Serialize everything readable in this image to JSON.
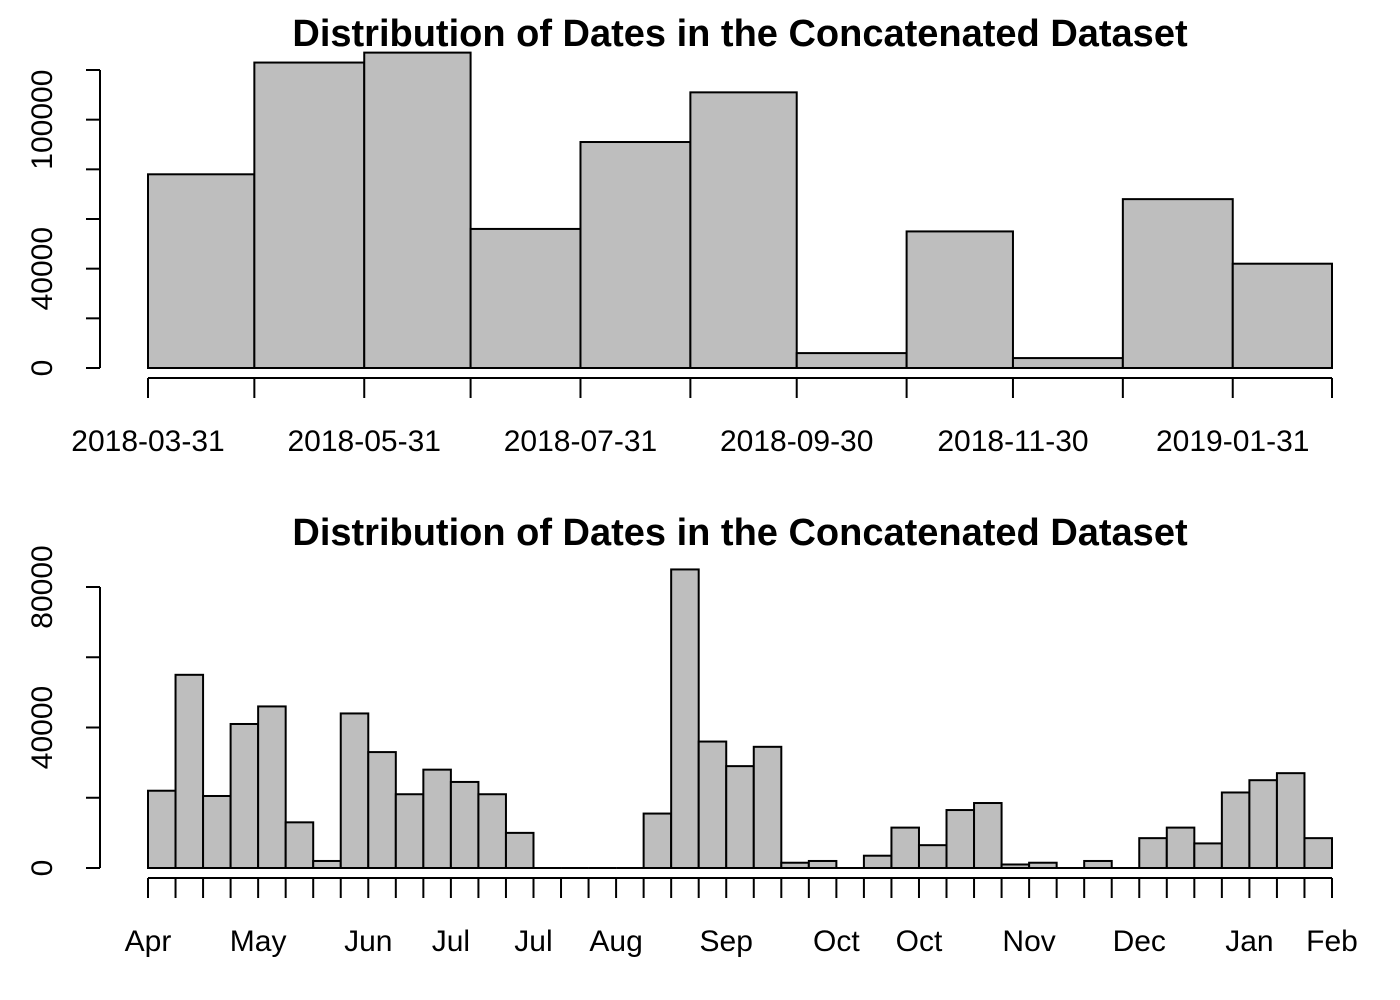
{
  "chart_data": [
    {
      "type": "bar",
      "title": "Distribution of Dates in the Concatenated Dataset",
      "xlabel": "",
      "ylabel": "",
      "ylim": [
        0,
        120000
      ],
      "y_ticks": [
        0,
        20000,
        40000,
        60000,
        80000,
        100000,
        120000
      ],
      "y_tick_labels": [
        "0",
        "40000",
        "100000"
      ],
      "y_tick_labels_at": [
        0,
        40000,
        100000
      ],
      "x_tick_labels": [
        "2018-03-31",
        "2018-05-31",
        "2018-07-31",
        "2018-09-30",
        "2018-11-30",
        "2019-01-31"
      ],
      "bins": [
        {
          "start": "2018-03-31",
          "end": "2018-04-30",
          "value": 78000
        },
        {
          "start": "2018-04-30",
          "end": "2018-05-31",
          "value": 123000
        },
        {
          "start": "2018-05-31",
          "end": "2018-06-30",
          "value": 127000
        },
        {
          "start": "2018-06-30",
          "end": "2018-07-31",
          "value": 56000
        },
        {
          "start": "2018-07-31",
          "end": "2018-08-31",
          "value": 91000
        },
        {
          "start": "2018-08-31",
          "end": "2018-09-30",
          "value": 111000
        },
        {
          "start": "2018-09-30",
          "end": "2018-10-31",
          "value": 6000
        },
        {
          "start": "2018-10-31",
          "end": "2018-11-30",
          "value": 55000
        },
        {
          "start": "2018-11-30",
          "end": "2018-12-31",
          "value": 4000
        },
        {
          "start": "2018-12-31",
          "end": "2019-01-31",
          "value": 68000
        },
        {
          "start": "2019-01-31",
          "end": "2019-02-28",
          "value": 42000
        }
      ]
    },
    {
      "type": "bar",
      "title": "Distribution of Dates in the Concatenated Dataset",
      "xlabel": "",
      "ylabel": "",
      "ylim": [
        0,
        80000
      ],
      "y_ticks": [
        0,
        20000,
        40000,
        60000,
        80000
      ],
      "y_tick_labels": [
        "0",
        "40000",
        "80000"
      ],
      "y_tick_labels_at": [
        0,
        40000,
        80000
      ],
      "x_tick_labels": [
        "Apr",
        "May",
        "Jun",
        "Jul",
        "Jul",
        "Aug",
        "Sep",
        "Oct",
        "Oct",
        "Nov",
        "Dec",
        "Jan",
        "Feb"
      ],
      "x_tick_labels_at_bin": [
        0,
        4,
        8,
        11,
        14,
        17,
        21,
        25,
        28,
        32,
        36,
        40,
        43
      ],
      "bin_width_days": 7,
      "start_date": "2018-04-01",
      "values": [
        22000,
        55000,
        20500,
        41000,
        46000,
        13000,
        2000,
        44000,
        33000,
        21000,
        28000,
        24500,
        21000,
        10000,
        0,
        0,
        0,
        0,
        15500,
        85000,
        36000,
        29000,
        34500,
        1500,
        2000,
        0,
        3500,
        11500,
        6500,
        16500,
        18500,
        1000,
        1500,
        0,
        2000,
        0,
        8500,
        11500,
        7000,
        21500,
        25000,
        27000,
        8500
      ]
    }
  ]
}
